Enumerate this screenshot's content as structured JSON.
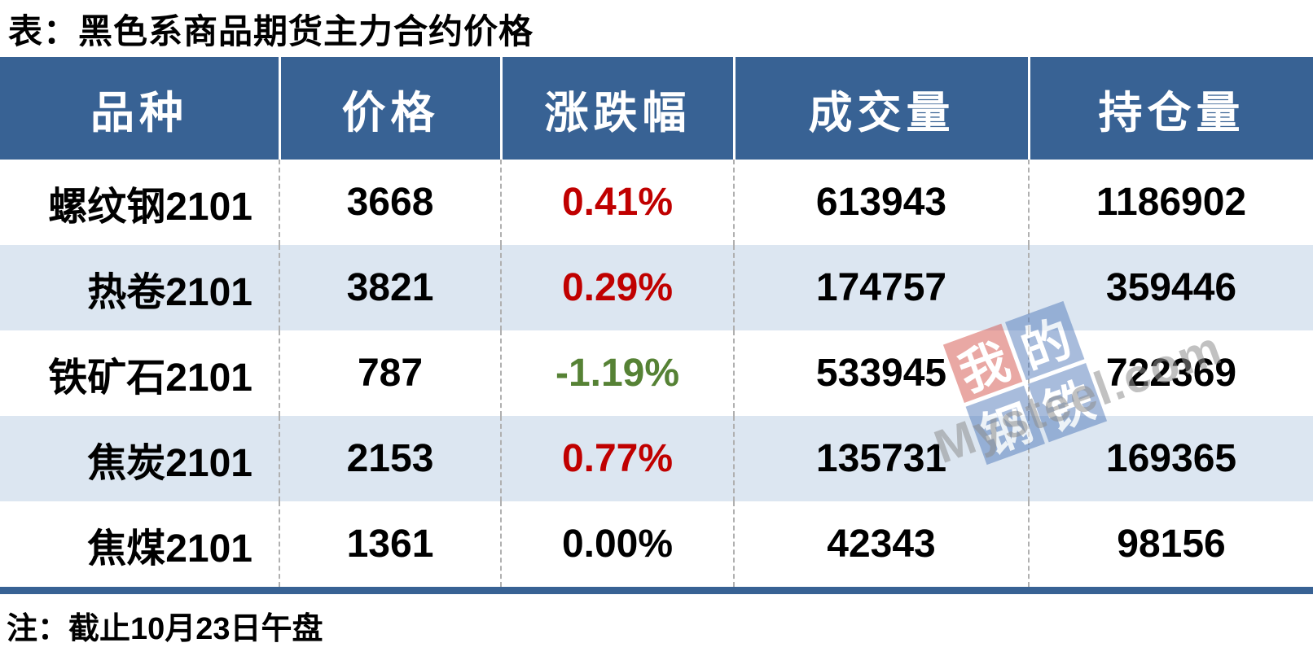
{
  "title": "表：黑色系商品期货主力合约价格",
  "note": "注：截止10月23日午盘",
  "colors": {
    "header_bg": "#386294",
    "alt_row_bg": "#DCE6F1",
    "up": "#C00000",
    "down": "#568235",
    "flat": "#000000"
  },
  "table": {
    "headers": [
      "品种",
      "价格",
      "涨跌幅",
      "成交量",
      "持仓量"
    ],
    "rows": [
      {
        "name": "螺纹钢2101",
        "price": "3668",
        "change": "0.41%",
        "volume": "613943",
        "open_interest": "1186902",
        "trend": "up"
      },
      {
        "name": "热卷2101",
        "price": "3821",
        "change": "0.29%",
        "volume": "174757",
        "open_interest": "359446",
        "trend": "up"
      },
      {
        "name": "铁矿石2101",
        "price": "787",
        "change": "-1.19%",
        "volume": "533945",
        "open_interest": "722369",
        "trend": "down"
      },
      {
        "name": "焦炭2101",
        "price": "2153",
        "change": "0.77%",
        "volume": "135731",
        "open_interest": "169365",
        "trend": "up"
      },
      {
        "name": "焦煤2101",
        "price": "1361",
        "change": "0.00%",
        "volume": "42343",
        "open_interest": "98156",
        "trend": "flat"
      }
    ]
  },
  "watermark": {
    "sq1": "我",
    "sq2": "的",
    "sq3": "钢",
    "sq4": "铁",
    "text": "Mysteel.com"
  },
  "chart_data": {
    "type": "table",
    "title": "表：黑色系商品期货主力合约价格",
    "columns": [
      "品种",
      "价格",
      "涨跌幅",
      "成交量",
      "持仓量"
    ],
    "rows": [
      [
        "螺纹钢2101",
        3668,
        "0.41%",
        613943,
        1186902
      ],
      [
        "热卷2101",
        3821,
        "0.29%",
        174757,
        359446
      ],
      [
        "铁矿石2101",
        787,
        "-1.19%",
        533945,
        722369
      ],
      [
        "焦炭2101",
        2153,
        "0.77%",
        135731,
        169365
      ],
      [
        "焦煤2101",
        1361,
        "0.00%",
        42343,
        98156
      ]
    ],
    "footnote": "注：截止10月23日午盘"
  }
}
